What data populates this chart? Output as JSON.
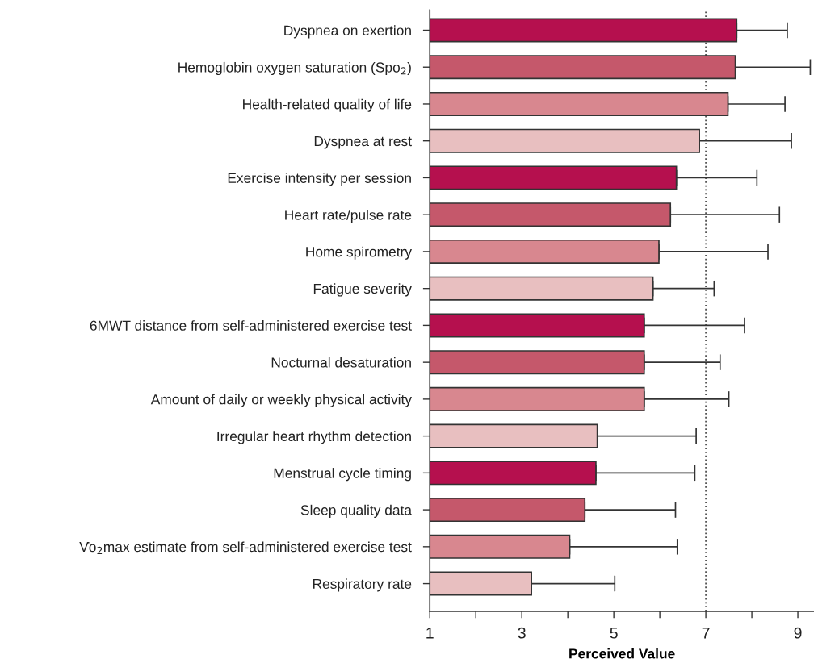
{
  "chart_data": {
    "type": "bar",
    "orientation": "horizontal",
    "xlabel": "Perceived Value",
    "categories": [
      "Dyspnea on exertion",
      "Hemoglobin oxygen saturation (Spo$_{2}$)",
      "Health-related quality of life",
      "Dyspnea at rest",
      "Exercise intensity per session",
      "Heart rate/pulse rate",
      "Home spirometry",
      "Fatigue severity",
      "6MWT distance from self-administered exercise test",
      "Nocturnal desaturation",
      "Amount of daily or weekly physical activity",
      "Irregular heart rhythm detection",
      "Menstrual cycle timing",
      "Sleep quality data",
      "V̇o$_{2}$max estimate from self-administered exercise test",
      "Respiratory rate"
    ],
    "values": [
      7.67,
      7.64,
      7.48,
      6.86,
      6.36,
      6.23,
      5.98,
      5.85,
      5.66,
      5.66,
      5.66,
      4.64,
      4.61,
      4.37,
      4.04,
      3.21
    ],
    "errors": [
      [
        7.67,
        8.77
      ],
      [
        7.64,
        9.27
      ],
      [
        7.48,
        8.72
      ],
      [
        6.86,
        8.86
      ],
      [
        6.36,
        8.11
      ],
      [
        6.23,
        8.6
      ],
      [
        5.98,
        8.35
      ],
      [
        5.85,
        7.18
      ],
      [
        5.66,
        7.84
      ],
      [
        5.66,
        7.31
      ],
      [
        5.66,
        7.5
      ],
      [
        4.64,
        6.79
      ],
      [
        4.61,
        6.76
      ],
      [
        4.37,
        6.34
      ],
      [
        4.04,
        6.38
      ],
      [
        3.21,
        5.02
      ]
    ],
    "colors": [
      "#b5104e",
      "#c5586b",
      "#d8878f",
      "#e8bfc0",
      "#b5104e",
      "#c5586b",
      "#d8878f",
      "#e8bfc0",
      "#b5104e",
      "#c5586b",
      "#d8878f",
      "#e8bfc0",
      "#b5104e",
      "#c5586b",
      "#d8878f",
      "#e8bfc0"
    ],
    "xlim": [
      1,
      9.35
    ],
    "xticks": [
      1,
      {
        "value": 2,
        "label": null
      },
      3,
      {
        "value": 4,
        "label": null
      },
      5,
      {
        "value": 6,
        "label": null
      },
      7,
      {
        "value": 8,
        "label": null
      },
      9
    ],
    "ref_lines": [
      {
        "axis": "x",
        "value": 7,
        "label": null,
        "line_style": "dotted",
        "color": "#555555"
      }
    ],
    "grid": false,
    "legend": false
  }
}
